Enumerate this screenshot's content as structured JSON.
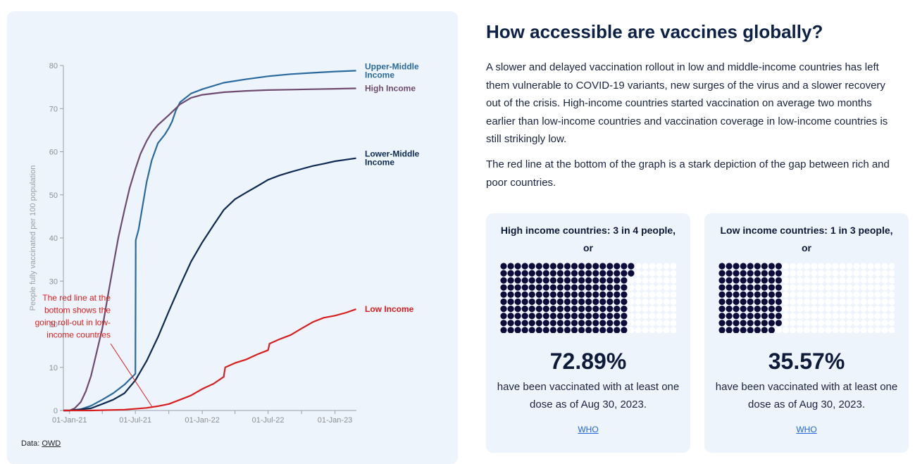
{
  "chart_data": {
    "type": "line",
    "ylabel": "People fully vaccinated per 100 population",
    "xlabel": "",
    "ylim": [
      0,
      80
    ],
    "yticks": [
      0,
      10,
      20,
      30,
      40,
      50,
      60,
      70,
      80
    ],
    "xticks": [
      {
        "label": "01-Jan-21",
        "date": "2021-01-01"
      },
      {
        "label": "01-Jul-21",
        "date": "2021-07-01"
      },
      {
        "label": "01-Jan-22",
        "date": "2022-01-01"
      },
      {
        "label": "01-Jul-22",
        "date": "2022-07-01"
      },
      {
        "label": "01-Jan-23",
        "date": "2023-01-01"
      }
    ],
    "xlim": [
      "2020-12-15",
      "2023-03-01"
    ],
    "grid": false,
    "series": [
      {
        "name": "Upper-Middle Income",
        "color": "#2a6a9e",
        "points": [
          [
            "2020-12-15",
            0
          ],
          [
            "2021-01-01",
            0
          ],
          [
            "2021-02-01",
            0.3
          ],
          [
            "2021-03-01",
            1.1
          ],
          [
            "2021-04-01",
            2.5
          ],
          [
            "2021-05-01",
            4
          ],
          [
            "2021-06-01",
            6
          ],
          [
            "2021-07-01",
            8.5
          ],
          [
            "2021-07-02",
            39.5
          ],
          [
            "2021-07-10",
            42
          ],
          [
            "2021-07-20",
            47
          ],
          [
            "2021-08-01",
            53
          ],
          [
            "2021-08-15",
            58
          ],
          [
            "2021-09-01",
            62
          ],
          [
            "2021-09-20",
            64
          ],
          [
            "2021-10-01",
            65.5
          ],
          [
            "2021-10-10",
            67
          ],
          [
            "2021-10-20",
            69.5
          ],
          [
            "2021-11-01",
            71.5
          ],
          [
            "2021-12-01",
            73.5
          ],
          [
            "2022-01-01",
            74.5
          ],
          [
            "2022-03-01",
            76
          ],
          [
            "2022-05-01",
            76.8
          ],
          [
            "2022-07-01",
            77.5
          ],
          [
            "2022-09-01",
            78
          ],
          [
            "2022-11-01",
            78.3
          ],
          [
            "2023-01-01",
            78.6
          ],
          [
            "2023-02-28",
            78.8
          ]
        ]
      },
      {
        "name": "High Income",
        "color": "#6e4a70",
        "points": [
          [
            "2020-12-15",
            0
          ],
          [
            "2021-01-01",
            0
          ],
          [
            "2021-01-15",
            0.5
          ],
          [
            "2021-02-01",
            2
          ],
          [
            "2021-02-15",
            4.5
          ],
          [
            "2021-03-01",
            8
          ],
          [
            "2021-03-15",
            13
          ],
          [
            "2021-04-01",
            19
          ],
          [
            "2021-04-15",
            26
          ],
          [
            "2021-05-01",
            33.5
          ],
          [
            "2021-05-15",
            40
          ],
          [
            "2021-06-01",
            46.5
          ],
          [
            "2021-06-15",
            51.5
          ],
          [
            "2021-07-01",
            56
          ],
          [
            "2021-07-15",
            59.5
          ],
          [
            "2021-08-01",
            62.5
          ],
          [
            "2021-08-15",
            64.5
          ],
          [
            "2021-09-01",
            66.2
          ],
          [
            "2021-10-01",
            68.5
          ],
          [
            "2021-11-01",
            71
          ],
          [
            "2021-12-01",
            72.5
          ],
          [
            "2022-01-01",
            73.2
          ],
          [
            "2022-03-01",
            73.8
          ],
          [
            "2022-05-01",
            74.1
          ],
          [
            "2022-07-01",
            74.3
          ],
          [
            "2022-09-01",
            74.4
          ],
          [
            "2022-11-01",
            74.5
          ],
          [
            "2023-01-01",
            74.6
          ],
          [
            "2023-02-28",
            74.7
          ]
        ]
      },
      {
        "name": "Lower-Middle Income",
        "color": "#0e2a52",
        "points": [
          [
            "2020-12-15",
            0
          ],
          [
            "2021-01-01",
            0
          ],
          [
            "2021-03-01",
            0.5
          ],
          [
            "2021-04-01",
            1.5
          ],
          [
            "2021-05-01",
            2.5
          ],
          [
            "2021-06-01",
            4
          ],
          [
            "2021-07-01",
            7
          ],
          [
            "2021-08-01",
            11.5
          ],
          [
            "2021-09-01",
            17
          ],
          [
            "2021-10-01",
            23
          ],
          [
            "2021-11-01",
            29
          ],
          [
            "2021-12-01",
            34.5
          ],
          [
            "2022-01-01",
            39
          ],
          [
            "2022-02-01",
            43
          ],
          [
            "2022-03-01",
            46.5
          ],
          [
            "2022-04-01",
            49
          ],
          [
            "2022-05-01",
            50.5
          ],
          [
            "2022-06-01",
            52
          ],
          [
            "2022-07-01",
            53.5
          ],
          [
            "2022-08-01",
            54.5
          ],
          [
            "2022-09-01",
            55.3
          ],
          [
            "2022-10-01",
            56
          ],
          [
            "2022-11-01",
            56.7
          ],
          [
            "2022-12-01",
            57.2
          ],
          [
            "2023-01-01",
            57.8
          ],
          [
            "2023-02-28",
            58.5
          ]
        ]
      },
      {
        "name": "Low Income",
        "color": "#d81e1e",
        "points": [
          [
            "2020-12-15",
            0
          ],
          [
            "2021-03-01",
            0
          ],
          [
            "2021-06-01",
            0.2
          ],
          [
            "2021-08-01",
            0.6
          ],
          [
            "2021-09-01",
            1
          ],
          [
            "2021-10-01",
            1.5
          ],
          [
            "2021-11-01",
            2.5
          ],
          [
            "2021-12-01",
            3.5
          ],
          [
            "2022-01-01",
            5
          ],
          [
            "2022-02-01",
            6.2
          ],
          [
            "2022-03-01",
            7.8
          ],
          [
            "2022-03-05",
            10
          ],
          [
            "2022-04-01",
            11
          ],
          [
            "2022-05-01",
            11.8
          ],
          [
            "2022-06-01",
            13
          ],
          [
            "2022-07-01",
            14
          ],
          [
            "2022-07-05",
            15.5
          ],
          [
            "2022-08-01",
            16.5
          ],
          [
            "2022-09-01",
            17.5
          ],
          [
            "2022-10-01",
            19
          ],
          [
            "2022-11-01",
            20.5
          ],
          [
            "2022-12-01",
            21.5
          ],
          [
            "2023-01-01",
            22
          ],
          [
            "2023-02-01",
            22.7
          ],
          [
            "2023-02-28",
            23.5
          ]
        ]
      }
    ],
    "end_labels": [
      {
        "series": "Upper-Middle Income",
        "lines": [
          "Upper-Middle",
          "Income"
        ]
      },
      {
        "series": "High Income",
        "lines": [
          "High Income"
        ]
      },
      {
        "series": "Lower-Middle Income",
        "lines": [
          "Lower-Middle",
          "Income"
        ]
      },
      {
        "series": "Low Income",
        "lines": [
          "Low Income"
        ]
      }
    ],
    "annotation": {
      "lines": [
        "The red line at the",
        "bottom shows the",
        "going roll-out in low-",
        "income countries"
      ],
      "points_to": {
        "x": "2021-08-15",
        "y": 1
      }
    }
  },
  "source": {
    "label": "Data:",
    "link": "OWD"
  },
  "article": {
    "title": "How accessible are vaccines globally?",
    "paragraph1": "A slower and delayed vaccination rollout in low and middle-income countries has left them vulnerable to COVID-19 variants, new surges of the virus and a slower recovery out of the crisis. High-income countries started vaccination on average two months earlier than low-income countries and vaccination coverage in low-income countries is still strikingly low.",
    "paragraph2": "The red line at the bottom of the graph is a stark depiction of the gap between rich and poor countries."
  },
  "stats": [
    {
      "heading": "High income countries: 3 in 4 people, or",
      "percent_value": 72.89,
      "percent_label": "72.89%",
      "description": "have been vaccinated with at least one dose as of Aug 30, 2023.",
      "link": "WHO",
      "filled_color": "#0d0b3a",
      "empty_color": "#ffffff"
    },
    {
      "heading": "Low income countries: 1 in 3 people, or",
      "percent_value": 35.57,
      "percent_label": "35.57%",
      "description": "have been vaccinated with at least one dose as of Aug 30, 2023.",
      "link": "WHO",
      "filled_color": "#0d0b3a",
      "empty_color": "#ffffff"
    }
  ]
}
